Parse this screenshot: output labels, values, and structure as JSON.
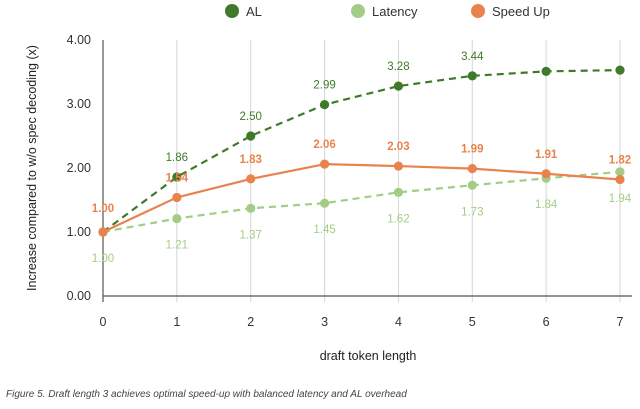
{
  "chart_data": {
    "type": "line",
    "x": [
      0,
      1,
      2,
      3,
      4,
      5,
      6,
      7
    ],
    "xlabel": "draft token length",
    "ylabel": "Increase compared to w/o spec decoding (x)",
    "ylim": [
      0,
      4
    ],
    "yticks": [
      "0.00",
      "1.00",
      "2.00",
      "3.00",
      "4.00"
    ],
    "xticks": [
      "0",
      "1",
      "2",
      "3",
      "4",
      "5",
      "6",
      "7"
    ],
    "grid": "vertical",
    "legend_position": "top-center",
    "series": [
      {
        "name": "AL",
        "color": "#3f7a2a",
        "style": "dashed",
        "values": [
          1.0,
          1.86,
          2.5,
          2.99,
          3.28,
          3.44,
          3.51,
          3.53
        ],
        "labels": [
          "",
          "1.86",
          "2.50",
          "2.99",
          "3.28",
          "3.44",
          "",
          ""
        ],
        "label_bold": false
      },
      {
        "name": "Latency",
        "color": "#a3cd86",
        "style": "dashed",
        "values": [
          1.0,
          1.21,
          1.37,
          1.45,
          1.62,
          1.73,
          1.84,
          1.94
        ],
        "labels": [
          "1.00",
          "1.21",
          "1.37",
          "1.45",
          "1.62",
          "1.73",
          "1.84",
          "1.94"
        ],
        "label_bold": false
      },
      {
        "name": "Speed Up",
        "color": "#e8834d",
        "style": "solid",
        "values": [
          1.0,
          1.54,
          1.83,
          2.06,
          2.03,
          1.99,
          1.91,
          1.82
        ],
        "labels": [
          "1.00",
          "1.54",
          "1.83",
          "2.06",
          "2.03",
          "1.99",
          "1.91",
          "1.82"
        ],
        "label_bold": true
      }
    ]
  },
  "caption": "Figure 5. Draft length 3 achieves optimal speed-up with balanced latency and AL overhead"
}
